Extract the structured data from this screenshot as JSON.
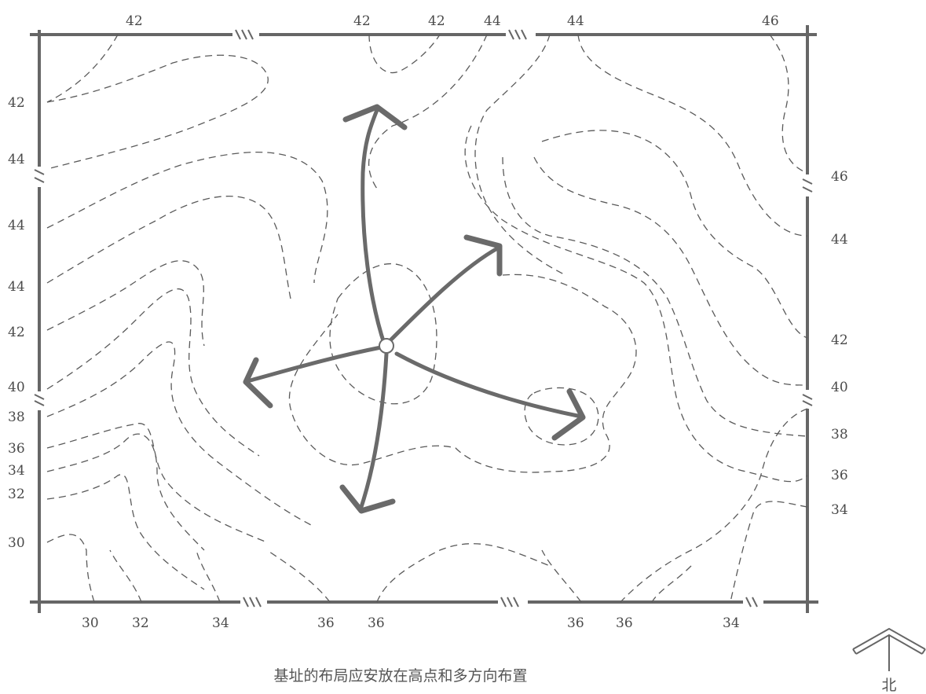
{
  "caption": "基址的布局应安放在高点和多方向布置",
  "north_label": "北",
  "contour_labels": {
    "top": [
      "42",
      "42",
      "42",
      "44",
      "44",
      "46"
    ],
    "left": [
      "42",
      "44",
      "44",
      "44",
      "42",
      "40",
      "38",
      "36",
      "34",
      "32",
      "30"
    ],
    "right": [
      "46",
      "44",
      "42",
      "40",
      "38",
      "36",
      "34"
    ],
    "bottom": [
      "30",
      "32",
      "34",
      "36",
      "36",
      "36",
      "36",
      "34"
    ]
  },
  "colors": {
    "ink": "#5a5a5a",
    "arrow": "#6a6a6a"
  },
  "icons": {
    "compass": "north-arrow-icon"
  }
}
